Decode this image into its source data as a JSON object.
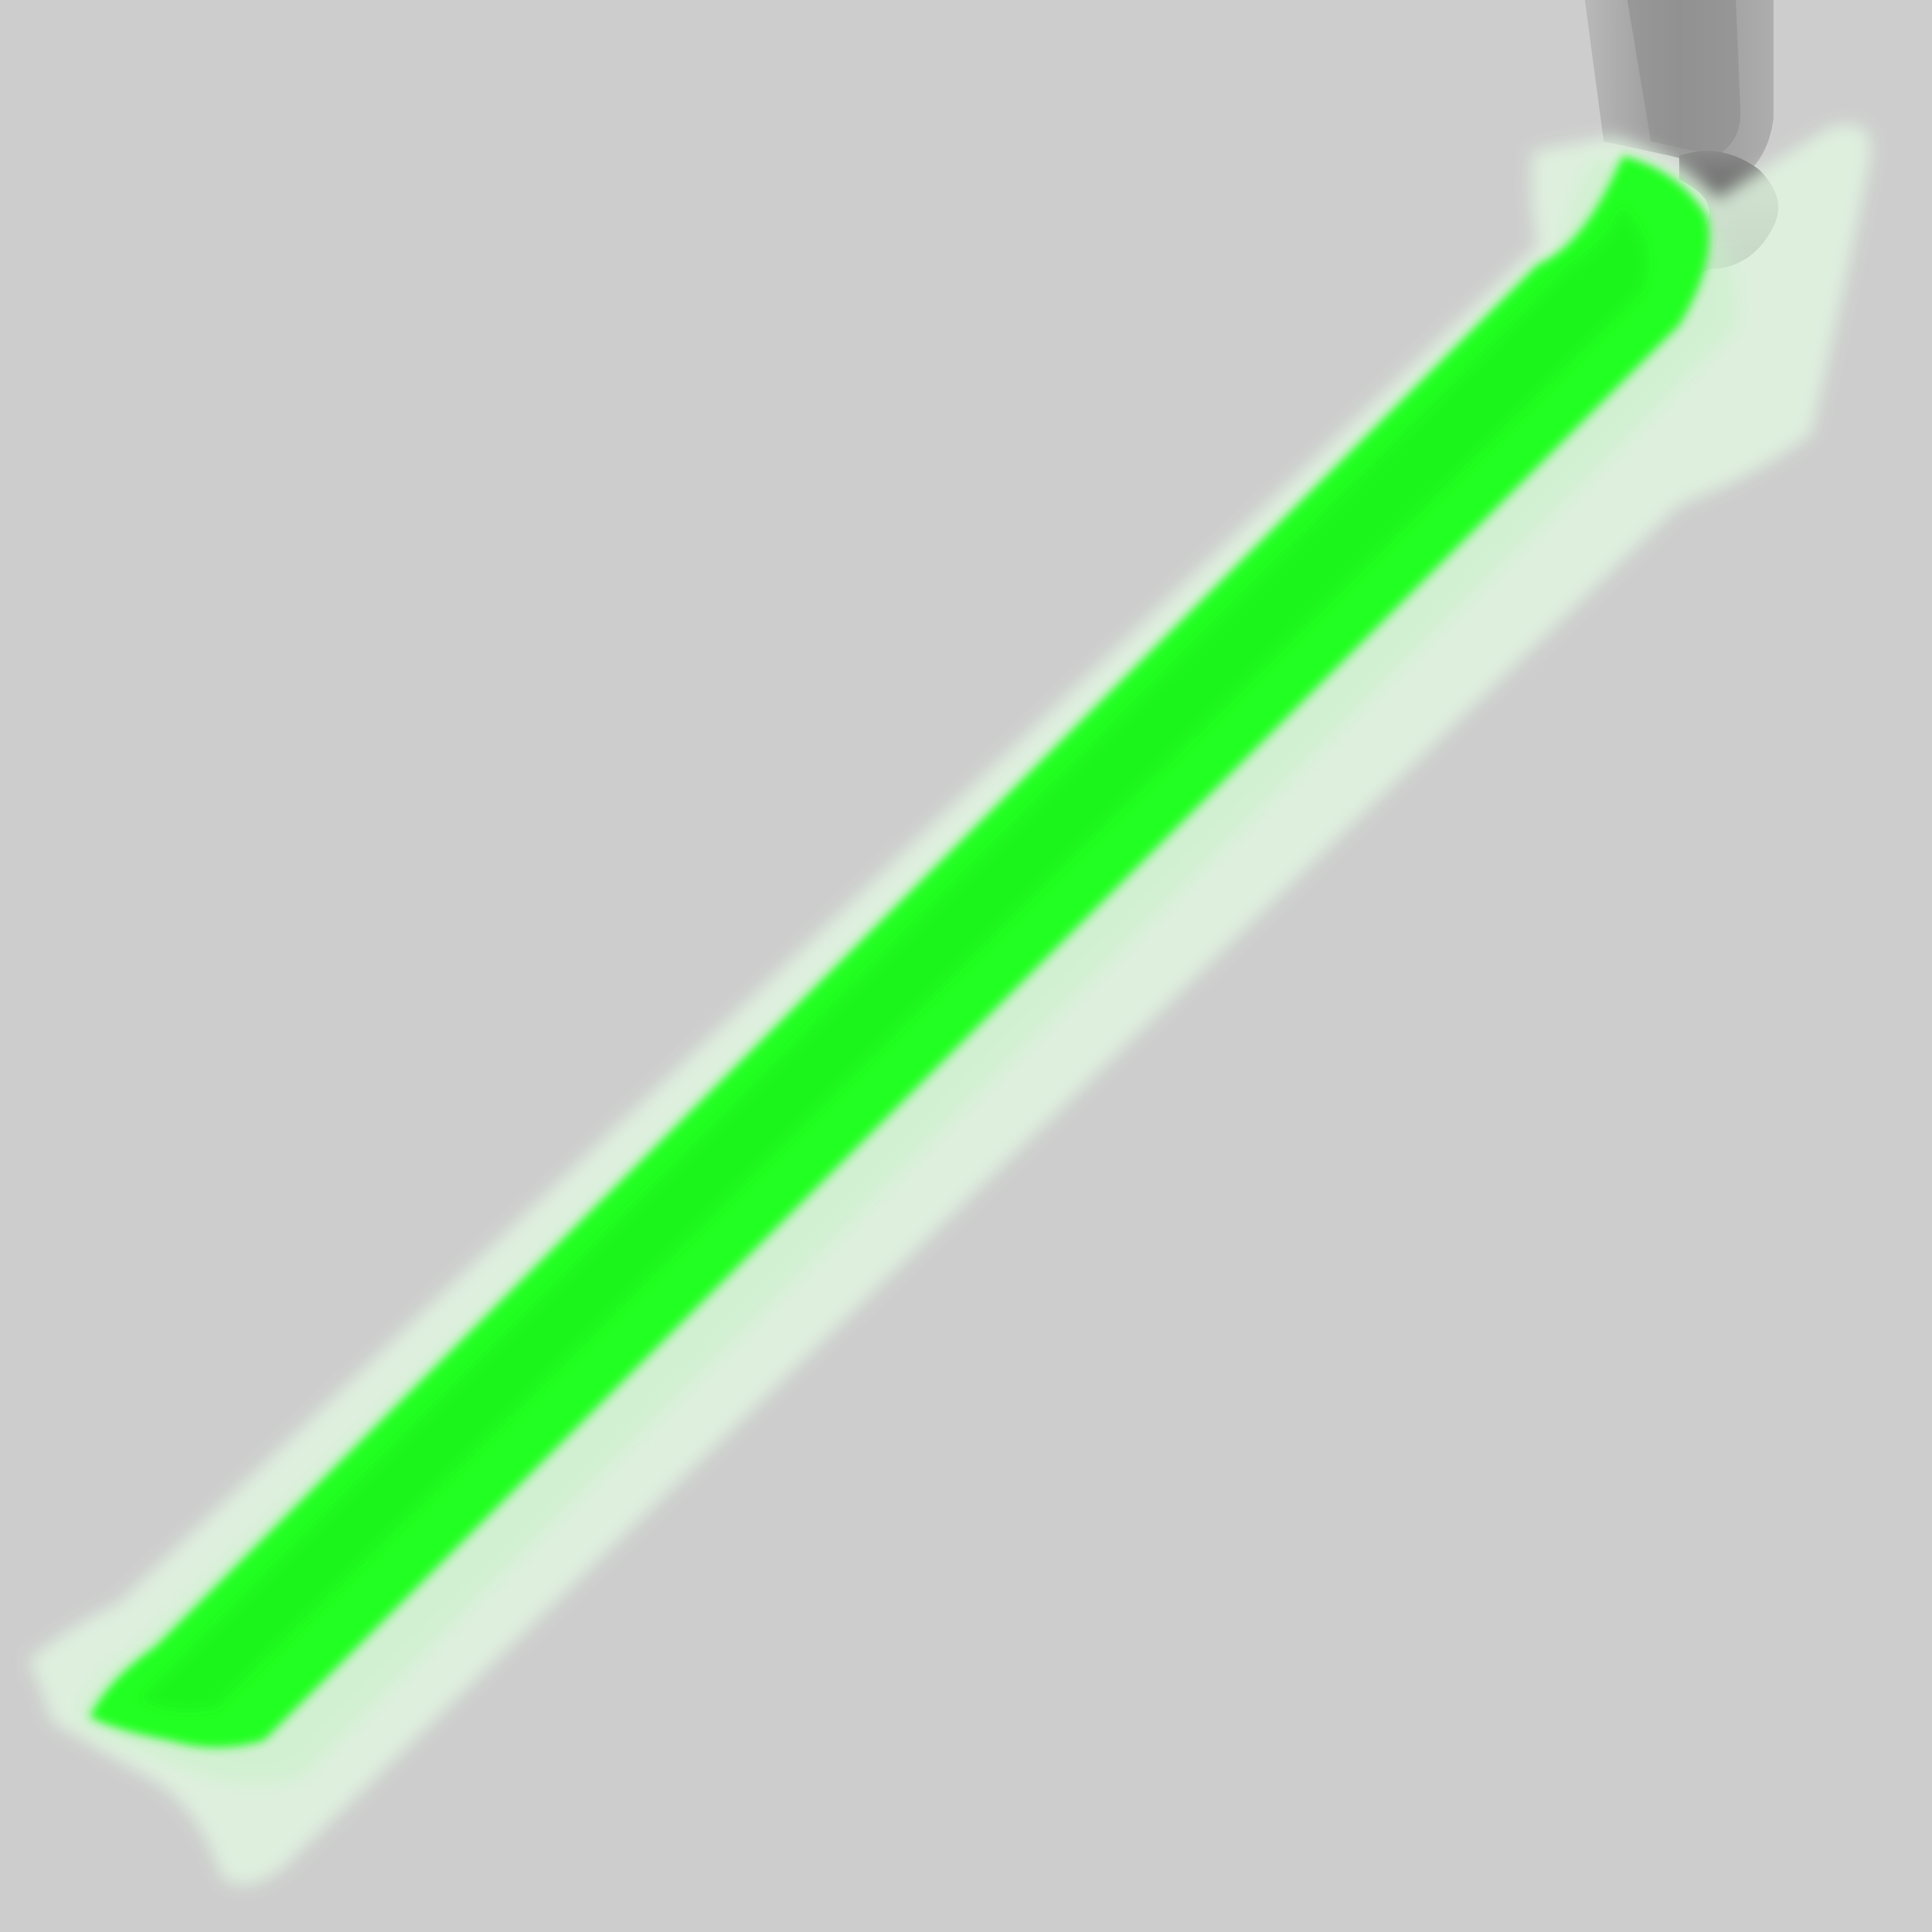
{
  "scene": {
    "background_color": "#cdcdcd",
    "object": "glowing-blade",
    "colors": {
      "blade_core": "#22ff22",
      "blade_glow": "#e2f6e2",
      "hilt_light": "#9a9a9a",
      "hilt_dark": "#3a3a3a"
    }
  }
}
